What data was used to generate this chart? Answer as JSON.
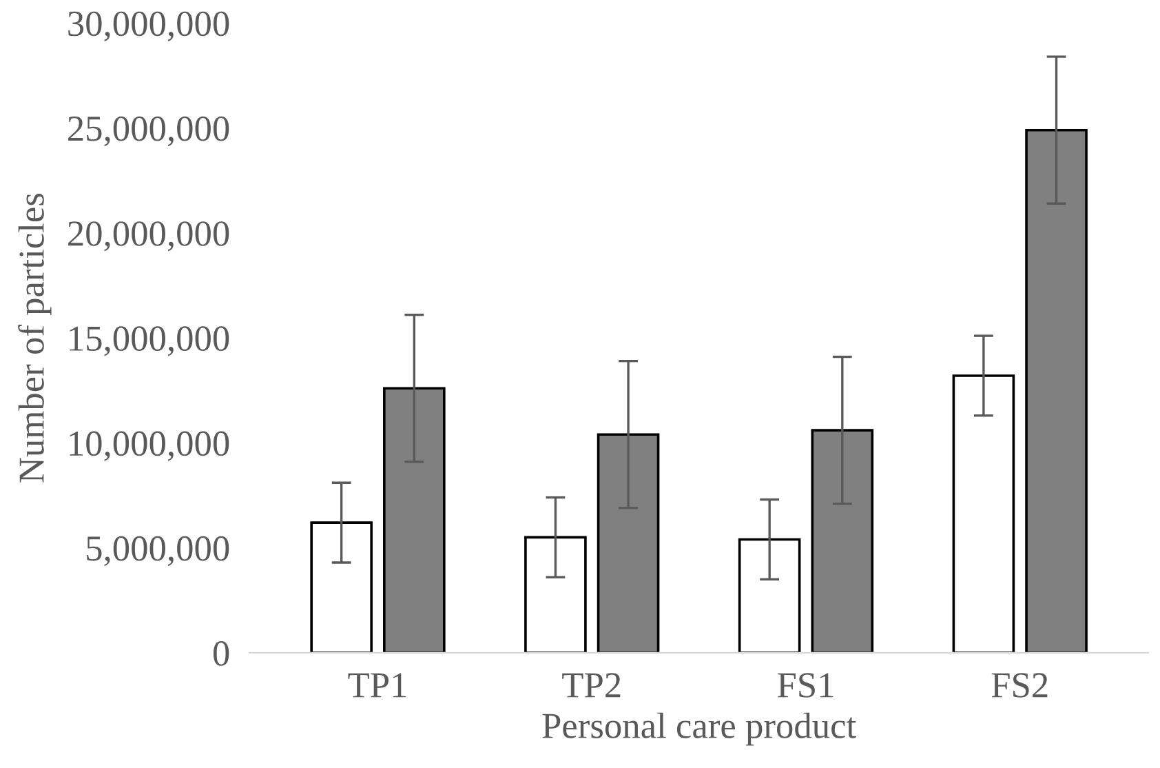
{
  "chart_data": {
    "type": "bar",
    "xlabel": "Personal care product",
    "ylabel": "Number of particles",
    "categories": [
      "TP1",
      "TP2",
      "FS1",
      "FS2"
    ],
    "series": [
      {
        "color": "#ffffff",
        "values": [
          6200000,
          5500000,
          5400000,
          13200000
        ],
        "errors": [
          1900000,
          1900000,
          1900000,
          1900000
        ]
      },
      {
        "color": "#808080",
        "values": [
          12600000,
          10400000,
          10600000,
          24900000
        ],
        "errors": [
          3500000,
          3500000,
          3500000,
          3500000
        ]
      }
    ],
    "ylim": [
      0,
      30000000
    ],
    "yticks": [
      {
        "value": 0,
        "label": "0"
      },
      {
        "value": 5000000,
        "label": "5,000,000"
      },
      {
        "value": 10000000,
        "label": "10,000,000"
      },
      {
        "value": 15000000,
        "label": "15,000,000"
      },
      {
        "value": 20000000,
        "label": "20,000,000"
      },
      {
        "value": 25000000,
        "label": "25,000,000"
      },
      {
        "value": 30000000,
        "label": "30,000,000"
      }
    ],
    "grid": false,
    "legend": false
  }
}
